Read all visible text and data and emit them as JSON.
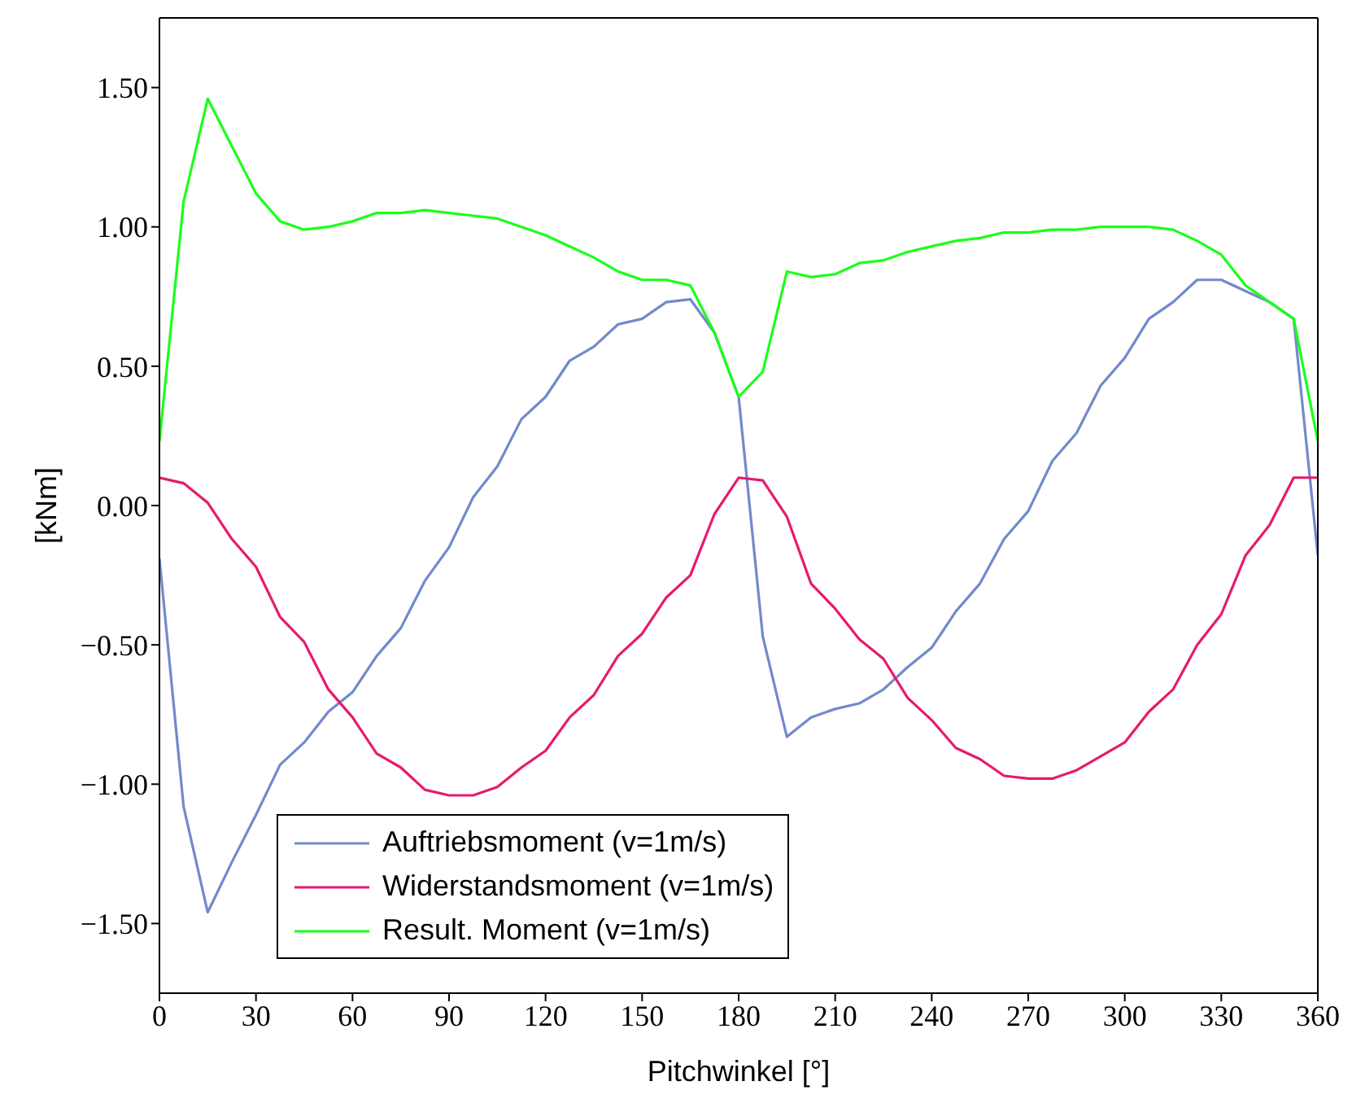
{
  "chart_data": {
    "type": "line",
    "xlabel": "Pitchwinkel [°]",
    "ylabel": "[kNm]",
    "x": [
      0,
      7.5,
      15,
      22.5,
      30,
      37.5,
      45,
      52.5,
      60,
      67.5,
      75,
      82.5,
      90,
      97.5,
      105,
      112.5,
      120,
      127.5,
      135,
      142.5,
      150,
      157.5,
      165,
      172.5,
      180,
      187.5,
      195,
      202.5,
      210,
      217.5,
      225,
      232.5,
      240,
      247.5,
      255,
      262.5,
      270,
      277.5,
      285,
      292.5,
      300,
      307.5,
      315,
      322.5,
      330,
      337.5,
      345,
      352.5,
      360
    ],
    "series": [
      {
        "name": "Auftriebsmoment (v=1m/s)",
        "color": "#7289cc",
        "values": [
          -0.19,
          -1.08,
          -1.46,
          -1.28,
          -1.11,
          -0.93,
          -0.85,
          -0.74,
          -0.67,
          -0.54,
          -0.44,
          -0.27,
          -0.15,
          0.03,
          0.14,
          0.31,
          0.39,
          0.52,
          0.57,
          0.65,
          0.67,
          0.73,
          0.74,
          0.62,
          0.39,
          -0.47,
          -0.83,
          -0.76,
          -0.73,
          -0.71,
          -0.66,
          -0.58,
          -0.51,
          -0.38,
          -0.28,
          -0.12,
          -0.02,
          0.16,
          0.26,
          0.43,
          0.53,
          0.67,
          0.73,
          0.81,
          0.81,
          0.77,
          0.73,
          0.67,
          -0.18
        ]
      },
      {
        "name": "Widerstandsmoment (v=1m/s)",
        "color": "#e8196e",
        "values": [
          0.1,
          0.08,
          0.01,
          -0.12,
          -0.22,
          -0.4,
          -0.49,
          -0.66,
          -0.76,
          -0.89,
          -0.94,
          -1.02,
          -1.04,
          -1.04,
          -1.01,
          -0.94,
          -0.88,
          -0.76,
          -0.68,
          -0.54,
          -0.46,
          -0.33,
          -0.25,
          -0.03,
          0.1,
          0.09,
          -0.04,
          -0.28,
          -0.37,
          -0.48,
          -0.55,
          -0.69,
          -0.77,
          -0.87,
          -0.91,
          -0.97,
          -0.98,
          -0.98,
          -0.95,
          -0.9,
          -0.85,
          -0.74,
          -0.66,
          -0.5,
          -0.39,
          -0.18,
          -0.07,
          0.1,
          0.1
        ]
      },
      {
        "name": "Result. Moment (v=1m/s)",
        "color": "#1aff1a",
        "values": [
          0.23,
          1.09,
          1.46,
          1.29,
          1.12,
          1.02,
          0.99,
          1.0,
          1.02,
          1.05,
          1.05,
          1.06,
          1.05,
          1.04,
          1.03,
          1.0,
          0.97,
          0.93,
          0.89,
          0.84,
          0.81,
          0.81,
          0.79,
          0.62,
          0.39,
          0.48,
          0.84,
          0.82,
          0.83,
          0.87,
          0.88,
          0.91,
          0.93,
          0.95,
          0.96,
          0.98,
          0.98,
          0.99,
          0.99,
          1.0,
          1.0,
          1.0,
          0.99,
          0.95,
          0.9,
          0.79,
          0.73,
          0.67,
          0.23
        ]
      }
    ],
    "xlim": [
      0,
      360
    ],
    "xticks": [
      0,
      30,
      60,
      90,
      120,
      150,
      180,
      210,
      240,
      270,
      300,
      330,
      360
    ],
    "ylim": [
      -1.75,
      1.75
    ],
    "yticks": [
      {
        "value": -1.5,
        "label": "−1.50"
      },
      {
        "value": -1,
        "label": "−1.00"
      },
      {
        "value": -0.5,
        "label": "−0.50"
      },
      {
        "value": 0,
        "label": "0.00"
      },
      {
        "value": 0.5,
        "label": "0.50"
      },
      {
        "value": 1,
        "label": "1.00"
      },
      {
        "value": 1.5,
        "label": "1.50"
      }
    ],
    "grid": false,
    "legend": "bottom left",
    "marker": "none",
    "line_style": "solid"
  }
}
